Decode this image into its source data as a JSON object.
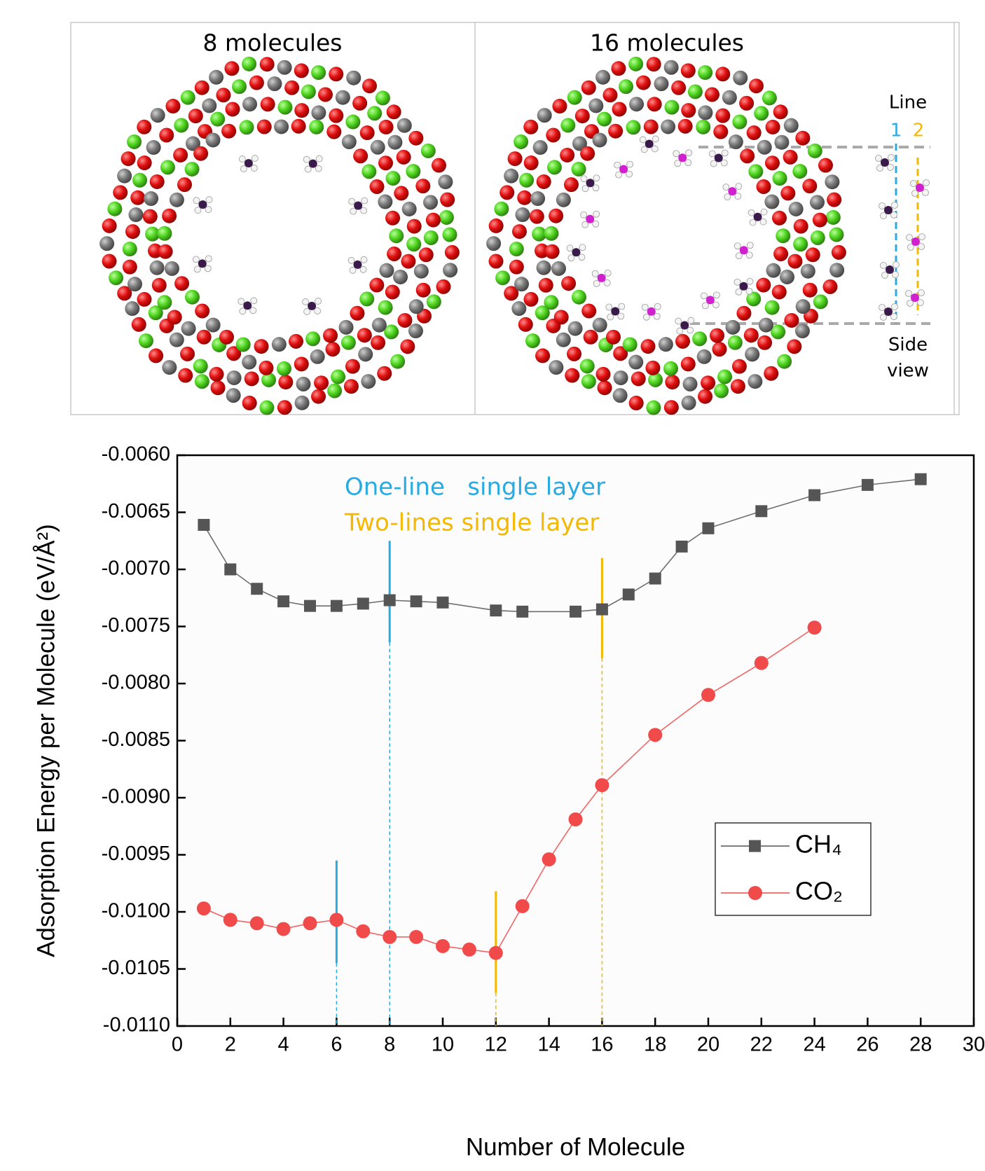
{
  "structure_panels": [
    {
      "title": "8 molecules"
    },
    {
      "title": "16 molecules"
    }
  ],
  "side_view": {
    "line_label": "Line",
    "line_numbers": [
      "1",
      "2"
    ],
    "label_lines": [
      "Side",
      "view"
    ]
  },
  "chart_data": {
    "type": "line",
    "x_label": "Number of Molecule",
    "y_label": "Adsorption Energy per Molecule (eV/Å²)",
    "xlim": [
      0,
      30
    ],
    "xticks": [
      0,
      2,
      4,
      6,
      8,
      10,
      12,
      14,
      16,
      18,
      20,
      22,
      24,
      26,
      28,
      30
    ],
    "ylim": [
      -0.011,
      -0.006
    ],
    "yticks": [
      {
        "value": -0.011,
        "label": "-0.0110"
      },
      {
        "value": -0.0105,
        "label": "-0.0105"
      },
      {
        "value": -0.01,
        "label": "-0.0100"
      },
      {
        "value": -0.0095,
        "label": "-0.0095"
      },
      {
        "value": -0.009,
        "label": "-0.0090"
      },
      {
        "value": -0.0085,
        "label": "-0.0085"
      },
      {
        "value": -0.008,
        "label": "-0.0080"
      },
      {
        "value": -0.0075,
        "label": "-0.0075"
      },
      {
        "value": -0.007,
        "label": "-0.0070"
      },
      {
        "value": -0.0065,
        "label": "-0.0065"
      },
      {
        "value": -0.006,
        "label": "-0.0060"
      }
    ],
    "series": [
      {
        "name": "CH₄",
        "color": "#555555",
        "marker": "square",
        "x": [
          1,
          2,
          3,
          4,
          5,
          6,
          7,
          8,
          9,
          10,
          12,
          13,
          15,
          16,
          17,
          18,
          19,
          20,
          22,
          24,
          26,
          28
        ],
        "values": [
          -0.00661,
          -0.007,
          -0.00717,
          -0.00728,
          -0.00732,
          -0.00732,
          -0.0073,
          -0.00727,
          -0.00728,
          -0.00729,
          -0.00736,
          -0.00737,
          -0.00737,
          -0.00735,
          -0.00722,
          -0.00708,
          -0.0068,
          -0.00664,
          -0.00649,
          -0.00635,
          -0.00626,
          -0.00621
        ]
      },
      {
        "name": "CO₂",
        "color": "#f04a4a",
        "marker": "circle",
        "x": [
          1,
          2,
          3,
          4,
          5,
          6,
          7,
          8,
          9,
          10,
          11,
          12,
          13,
          14,
          15,
          16,
          18,
          20,
          22,
          24
        ],
        "values": [
          -0.00997,
          -0.01007,
          -0.0101,
          -0.01015,
          -0.0101,
          -0.01007,
          -0.01017,
          -0.01022,
          -0.01022,
          -0.0103,
          -0.01033,
          -0.01036,
          -0.00995,
          -0.00954,
          -0.00919,
          -0.00889,
          -0.00845,
          -0.0081,
          -0.00782,
          -0.00751
        ]
      }
    ],
    "guides": [
      {
        "x": 8,
        "y": [
          -0.00675,
          -0.00764
        ],
        "color": "#29abe2"
      },
      {
        "x": 6,
        "y": [
          -0.00955,
          -0.01045
        ],
        "color": "#29abe2"
      },
      {
        "x": 16,
        "y": [
          -0.0069,
          -0.00778
        ],
        "color": "#f5b800"
      },
      {
        "x": 12,
        "y": [
          -0.00982,
          -0.01071
        ],
        "color": "#f5b800"
      }
    ],
    "annotations": [
      {
        "text": "One-line   single layer",
        "color": "#29abe2"
      },
      {
        "text": "Two-lines single layer",
        "color": "#f5b800"
      }
    ],
    "legend": "center-right"
  }
}
